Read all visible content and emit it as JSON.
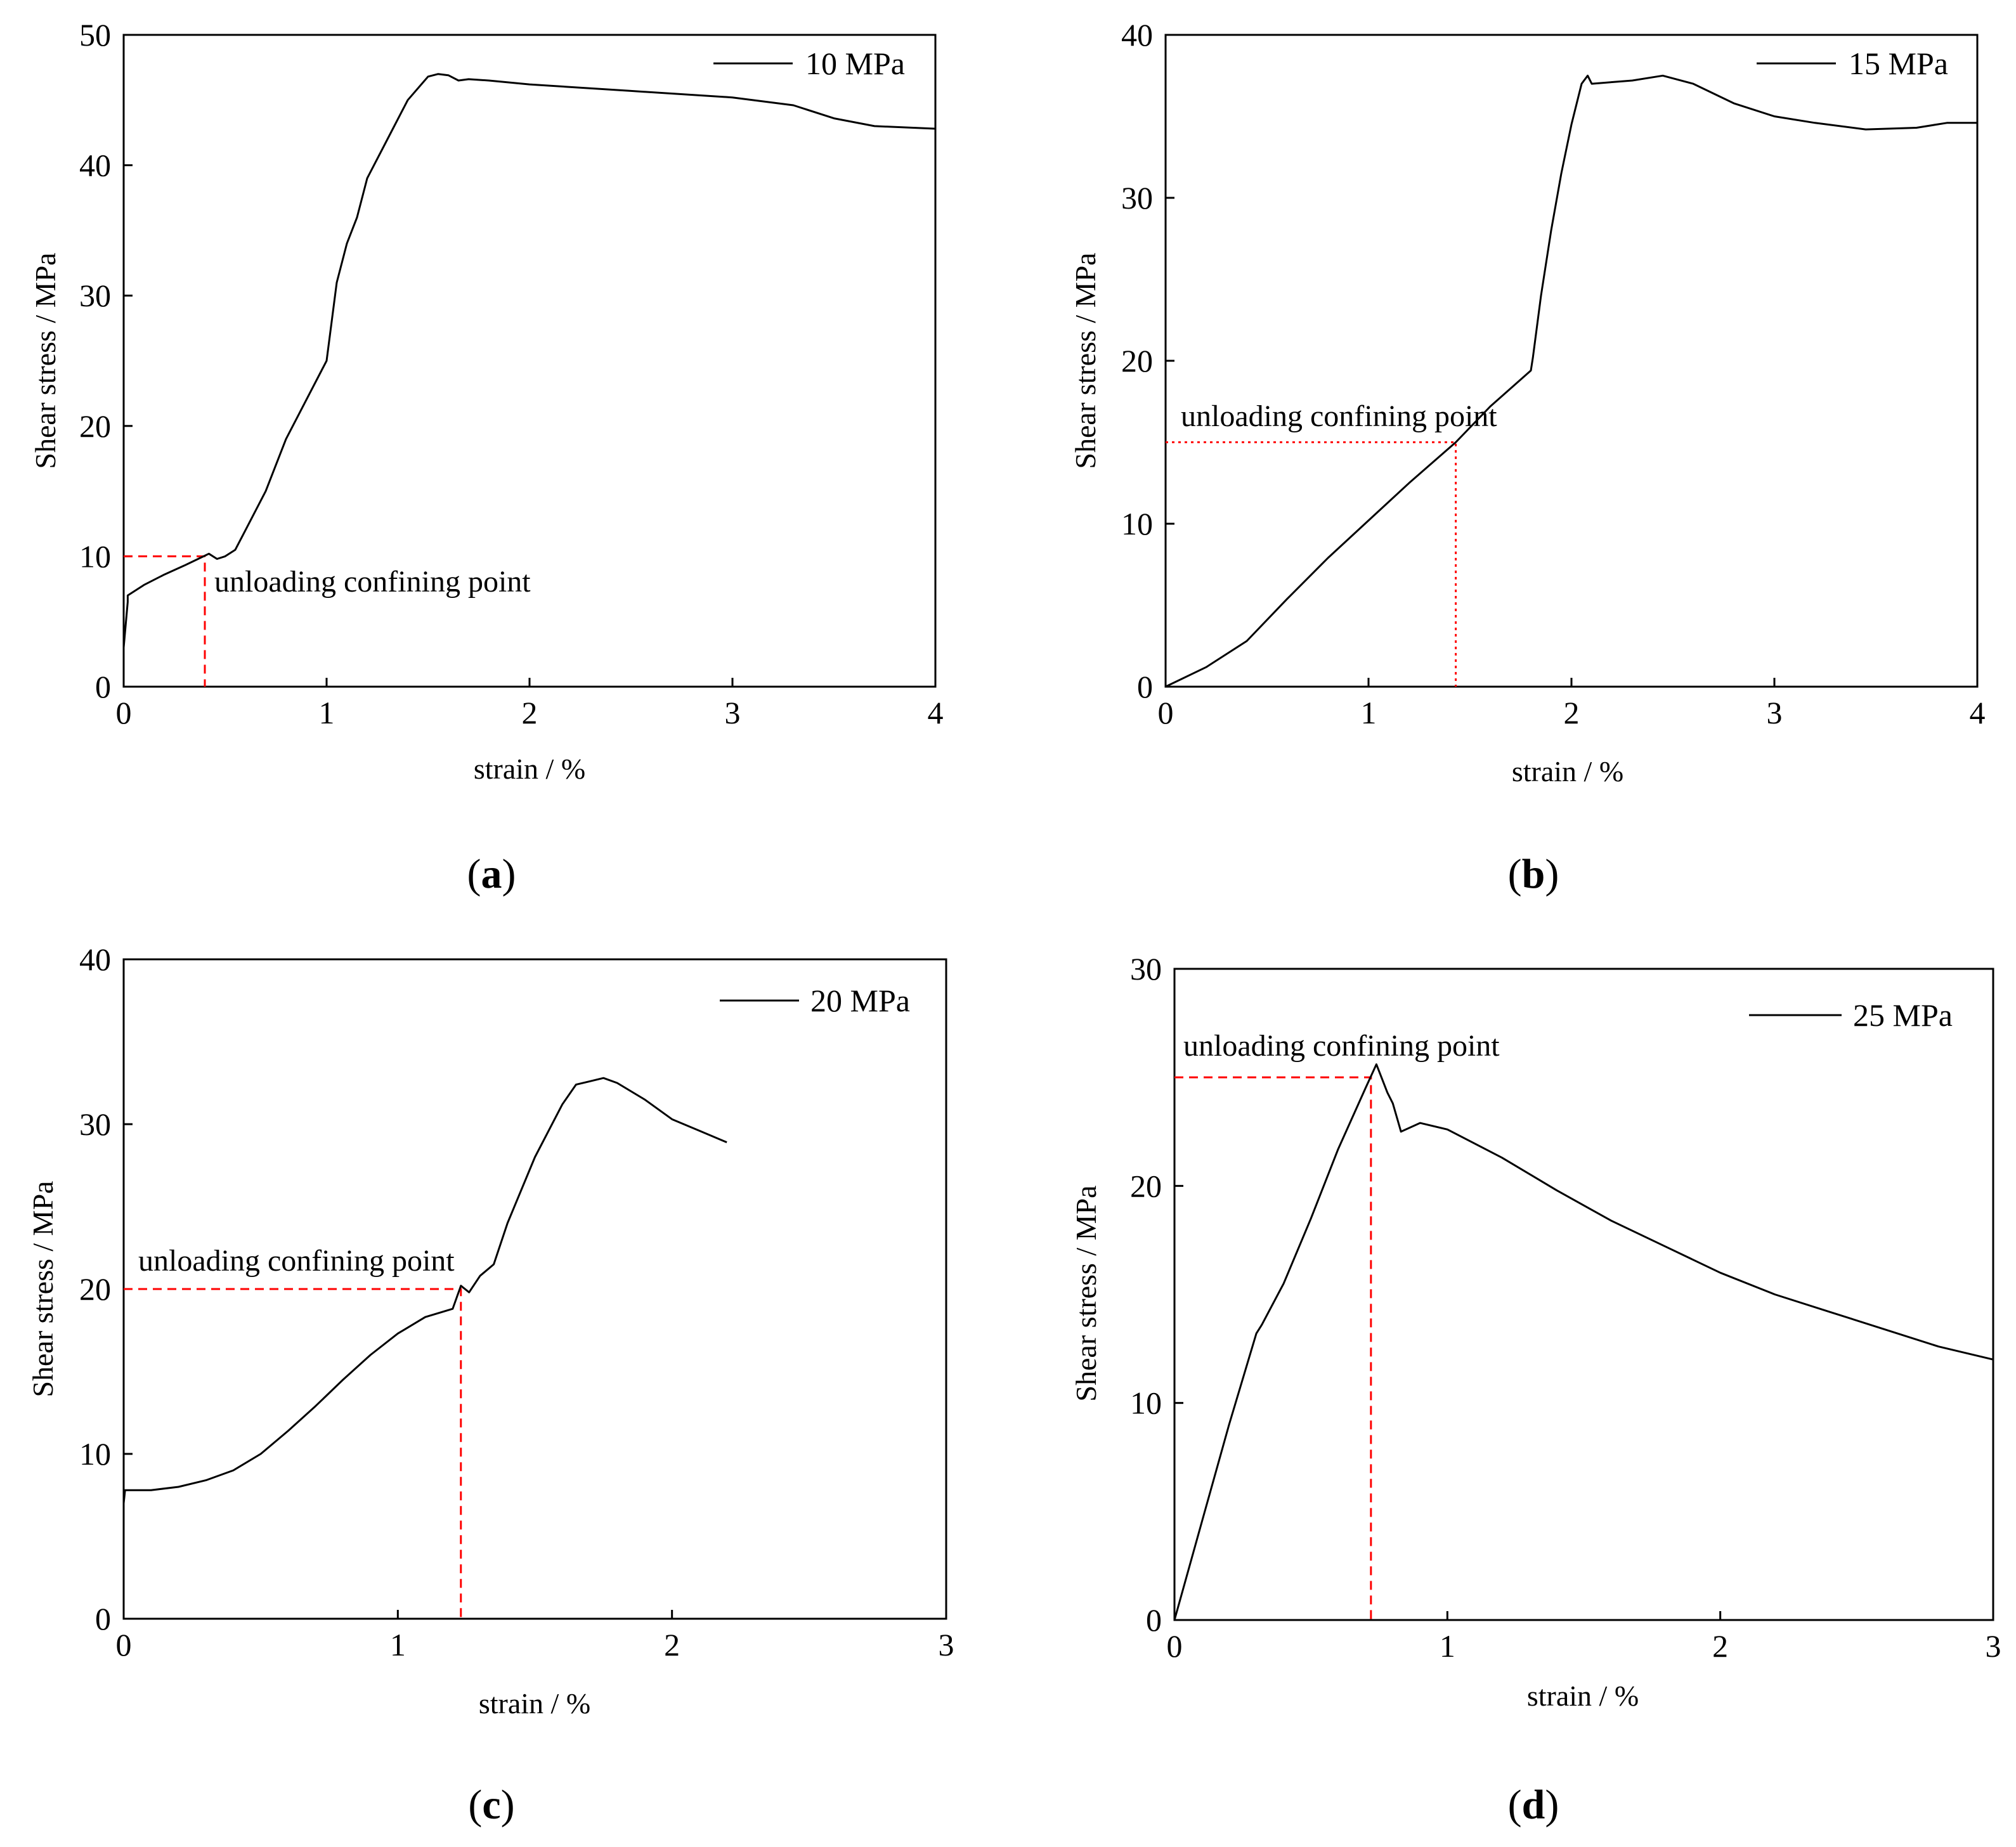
{
  "figure": {
    "panel_labels": [
      {
        "open": "(",
        "letter": "a",
        "close": ")"
      },
      {
        "open": "(",
        "letter": "b",
        "close": ")"
      },
      {
        "open": "(",
        "letter": "c",
        "close": ")"
      },
      {
        "open": "(",
        "letter": "d",
        "close": ")"
      }
    ]
  },
  "colors": {
    "curve": "#000000",
    "marker_line": "#ff0000",
    "axis": "#000000"
  },
  "chart_data": [
    {
      "type": "line",
      "title": "",
      "xlabel": "strain / %",
      "ylabel": "Shear stress / MPa",
      "xlim": [
        0,
        4
      ],
      "ylim": [
        0,
        50
      ],
      "xticks": [
        0,
        1,
        2,
        3,
        4
      ],
      "yticks": [
        0,
        10,
        20,
        30,
        40,
        50
      ],
      "legend": {
        "label": "10 MPa",
        "placement": "top-right"
      },
      "annotation": {
        "text": "unloading confining point",
        "x": 0.4,
        "y": 10,
        "placement": "below-right"
      },
      "marker_style": "dashed",
      "series": [
        {
          "name": "10 MPa",
          "x": [
            0,
            0.02,
            0.02,
            0.1,
            0.2,
            0.3,
            0.38,
            0.42,
            0.46,
            0.5,
            0.55,
            0.6,
            0.7,
            0.8,
            0.9,
            1.0,
            1.05,
            1.1,
            1.15,
            1.2,
            1.3,
            1.4,
            1.5,
            1.55,
            1.6,
            1.65,
            1.7,
            1.8,
            2.0,
            2.5,
            3.0,
            3.3,
            3.5,
            3.7,
            4.0
          ],
          "y": [
            3,
            6.5,
            7,
            7.8,
            8.6,
            9.3,
            9.9,
            10.2,
            9.8,
            10.0,
            10.5,
            12,
            15,
            19,
            22,
            25,
            31,
            34,
            36,
            39,
            42,
            45,
            46.8,
            47,
            46.9,
            46.5,
            46.6,
            46.5,
            46.2,
            45.7,
            45.2,
            44.6,
            43.6,
            43.0,
            42.8
          ]
        }
      ]
    },
    {
      "type": "line",
      "title": "",
      "xlabel": "strain / %",
      "ylabel": "Shear stress / MPa",
      "xlim": [
        0,
        4
      ],
      "ylim": [
        0,
        40
      ],
      "xticks": [
        0,
        1,
        2,
        3,
        4
      ],
      "yticks": [
        0,
        10,
        20,
        30,
        40
      ],
      "legend": {
        "label": "15 MPa",
        "placement": "top-right"
      },
      "annotation": {
        "text": "unloading confining point",
        "x": 1.43,
        "y": 15,
        "placement": "above-left"
      },
      "marker_style": "dotted",
      "series": [
        {
          "name": "15 MPa",
          "x": [
            0,
            0.2,
            0.4,
            0.6,
            0.8,
            1.0,
            1.2,
            1.43,
            1.6,
            1.8,
            1.81,
            1.85,
            1.9,
            1.95,
            2.0,
            2.05,
            2.08,
            2.1,
            2.2,
            2.3,
            2.45,
            2.6,
            2.8,
            3.0,
            3.2,
            3.45,
            3.7,
            3.85,
            4.0
          ],
          "y": [
            0,
            1.2,
            2.8,
            5.4,
            7.9,
            10.2,
            12.5,
            15,
            17.2,
            19.4,
            20.2,
            24,
            28,
            31.5,
            34.5,
            37,
            37.5,
            37,
            37.1,
            37.2,
            37.5,
            37.0,
            35.8,
            35.0,
            34.6,
            34.2,
            34.3,
            34.6,
            34.6
          ]
        }
      ]
    },
    {
      "type": "line",
      "title": "",
      "xlabel": "strain / %",
      "ylabel": "Shear stress / MPa",
      "xlim": [
        0,
        3
      ],
      "ylim": [
        0,
        40
      ],
      "xticks": [
        0,
        1,
        2,
        3
      ],
      "yticks": [
        0,
        10,
        20,
        30,
        40
      ],
      "legend": {
        "label": "20 MPa",
        "placement": "top-right"
      },
      "annotation": {
        "text": "unloading confining point",
        "x": 1.23,
        "y": 20,
        "placement": "above-left"
      },
      "marker_style": "dashed",
      "series": [
        {
          "name": "20 MPa",
          "x": [
            0,
            0.005,
            0.01,
            0.1,
            0.2,
            0.3,
            0.4,
            0.5,
            0.6,
            0.7,
            0.8,
            0.9,
            1.0,
            1.1,
            1.2,
            1.23,
            1.26,
            1.3,
            1.35,
            1.4,
            1.5,
            1.6,
            1.65,
            1.7,
            1.75,
            1.8,
            1.9,
            2.0,
            2.1,
            2.2
          ],
          "y": [
            7,
            7.8,
            7.8,
            7.8,
            8.0,
            8.4,
            9.0,
            10.0,
            11.4,
            12.9,
            14.5,
            16.0,
            17.3,
            18.3,
            18.8,
            20.2,
            19.8,
            20.8,
            21.5,
            24.0,
            28.0,
            31.2,
            32.4,
            32.6,
            32.8,
            32.5,
            31.5,
            30.3,
            29.6,
            28.9
          ]
        }
      ]
    },
    {
      "type": "line",
      "title": "",
      "xlabel": "strain / %",
      "ylabel": "Shear stress / MPa",
      "xlim": [
        0,
        3
      ],
      "ylim": [
        0,
        30
      ],
      "xticks": [
        0,
        1,
        2,
        3
      ],
      "yticks": [
        0,
        10,
        20,
        30
      ],
      "legend": {
        "label": "25 MPa",
        "placement": "top-right"
      },
      "annotation": {
        "text": "unloading confining point",
        "x": 0.72,
        "y": 25,
        "placement": "above-left"
      },
      "marker_style": "dashed",
      "series": [
        {
          "name": "25 MPa",
          "x": [
            0,
            0.1,
            0.2,
            0.3,
            0.32,
            0.4,
            0.5,
            0.6,
            0.7,
            0.74,
            0.78,
            0.8,
            0.83,
            0.9,
            1.0,
            1.2,
            1.4,
            1.6,
            1.8,
            2.0,
            2.2,
            2.4,
            2.6,
            2.8,
            3.0
          ],
          "y": [
            0,
            4.5,
            9.0,
            13.2,
            13.6,
            15.5,
            18.5,
            21.7,
            24.5,
            25.6,
            24.3,
            23.8,
            22.5,
            22.9,
            22.6,
            21.3,
            19.8,
            18.4,
            17.2,
            16.0,
            15.0,
            14.2,
            13.4,
            12.6,
            12.0
          ]
        }
      ]
    }
  ]
}
